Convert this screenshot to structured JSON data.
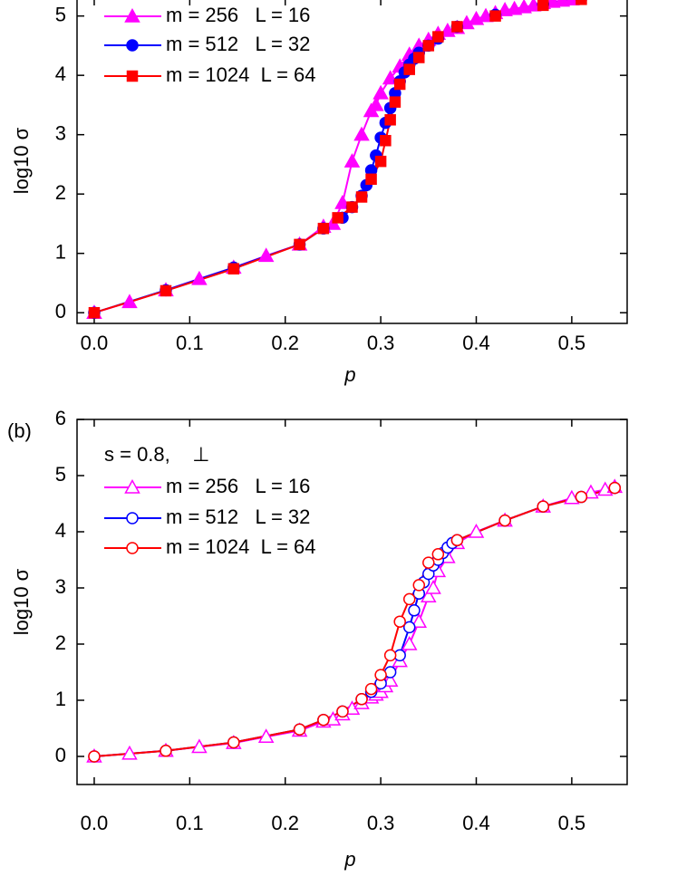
{
  "chart_data": [
    {
      "type": "line",
      "x_label": "p",
      "y_label": "log10 σ",
      "xlim": [
        -0.018,
        0.558
      ],
      "ylim": [
        -0.18,
        5.3
      ],
      "xticks": [
        {
          "value": 0,
          "label": "0.0"
        },
        0.1,
        0.2,
        0.3,
        0.4,
        0.5
      ],
      "yticks": [
        0,
        1,
        2,
        3,
        4,
        5
      ],
      "series": [
        {
          "name": "m = 256   L = 16",
          "color": "#ff00ff",
          "marker": "triangle",
          "filled": true,
          "x": [
            0,
            0.037,
            0.075,
            0.11,
            0.146,
            0.18,
            0.215,
            0.24,
            0.25,
            0.26,
            0.27,
            0.28,
            0.29,
            0.295,
            0.3,
            0.31,
            0.32,
            0.33,
            0.34,
            0.35,
            0.36,
            0.37,
            0.38,
            0.39,
            0.4,
            0.41,
            0.42,
            0.43,
            0.44,
            0.45,
            0.46,
            0.47,
            0.48,
            0.49,
            0.5
          ],
          "values": [
            0,
            0.18,
            0.38,
            0.57,
            0.76,
            0.96,
            1.15,
            1.45,
            1.5,
            1.85,
            2.55,
            3.0,
            3.4,
            3.5,
            3.7,
            3.95,
            4.15,
            4.35,
            4.5,
            4.6,
            4.7,
            4.75,
            4.8,
            4.88,
            4.95,
            5.0,
            5.05,
            5.1,
            5.12,
            5.15,
            5.18,
            5.22,
            5.24,
            5.26,
            5.28
          ]
        },
        {
          "name": "m = 512   L = 32",
          "color": "#0000ff",
          "marker": "circle",
          "filled": true,
          "x": [
            0,
            0.075,
            0.146,
            0.215,
            0.24,
            0.26,
            0.27,
            0.28,
            0.285,
            0.29,
            0.295,
            0.3,
            0.305,
            0.31,
            0.315,
            0.32,
            0.325,
            0.33,
            0.335,
            0.34,
            0.35,
            0.36,
            0.38,
            0.42,
            0.47,
            0.51
          ],
          "values": [
            0,
            0.38,
            0.76,
            1.15,
            1.42,
            1.6,
            1.78,
            1.97,
            2.15,
            2.4,
            2.65,
            2.95,
            3.2,
            3.45,
            3.7,
            3.9,
            4.05,
            4.18,
            4.28,
            4.38,
            4.5,
            4.62,
            4.82,
            5.02,
            5.2,
            5.3
          ]
        },
        {
          "name": "m = 1024  L = 64",
          "color": "#ff0000",
          "marker": "square",
          "filled": true,
          "x": [
            0,
            0.075,
            0.146,
            0.215,
            0.24,
            0.255,
            0.27,
            0.28,
            0.29,
            0.3,
            0.305,
            0.31,
            0.315,
            0.32,
            0.33,
            0.34,
            0.35,
            0.36,
            0.38,
            0.42,
            0.47,
            0.51
          ],
          "values": [
            0,
            0.37,
            0.74,
            1.15,
            1.42,
            1.6,
            1.78,
            1.95,
            2.25,
            2.55,
            2.9,
            3.25,
            3.55,
            3.85,
            4.1,
            4.3,
            4.5,
            4.65,
            4.82,
            5.0,
            5.18,
            5.28
          ]
        }
      ]
    },
    {
      "type": "line",
      "panel_label": "(b)",
      "annotation": "s = 0.8,    ⊥",
      "x_label": "p",
      "y_label": "log10 σ",
      "xlim": [
        -0.018,
        0.558
      ],
      "ylim": [
        -0.5,
        6
      ],
      "xticks": [
        {
          "value": 0,
          "label": "0.0"
        },
        0.1,
        0.2,
        0.3,
        0.4,
        0.5
      ],
      "yticks": [
        0,
        1,
        2,
        3,
        4,
        5,
        6
      ],
      "series": [
        {
          "name": "m = 256   L = 16",
          "color": "#ff00ff",
          "marker": "triangle",
          "filled": false,
          "x": [
            0,
            0.037,
            0.075,
            0.11,
            0.146,
            0.18,
            0.215,
            0.24,
            0.25,
            0.26,
            0.27,
            0.28,
            0.29,
            0.295,
            0.3,
            0.305,
            0.31,
            0.32,
            0.33,
            0.34,
            0.35,
            0.355,
            0.36,
            0.37,
            0.38,
            0.4,
            0.43,
            0.47,
            0.5,
            0.52,
            0.535,
            0.545
          ],
          "values": [
            0,
            0.05,
            0.1,
            0.17,
            0.24,
            0.35,
            0.46,
            0.62,
            0.66,
            0.75,
            0.85,
            0.95,
            1.05,
            1.1,
            1.15,
            1.25,
            1.35,
            1.7,
            2.0,
            2.4,
            2.85,
            3.0,
            3.3,
            3.55,
            3.8,
            4.0,
            4.2,
            4.45,
            4.6,
            4.7,
            4.75,
            4.8
          ]
        },
        {
          "name": "m = 512   L = 32",
          "color": "#0000ff",
          "marker": "circle",
          "filled": false,
          "x": [
            0,
            0.075,
            0.146,
            0.215,
            0.24,
            0.26,
            0.28,
            0.29,
            0.3,
            0.31,
            0.32,
            0.33,
            0.335,
            0.34,
            0.345,
            0.35,
            0.355,
            0.36,
            0.365,
            0.37,
            0.375,
            0.38,
            0.43,
            0.47,
            0.51,
            0.545
          ],
          "values": [
            0,
            0.1,
            0.25,
            0.48,
            0.65,
            0.8,
            1.02,
            1.15,
            1.3,
            1.5,
            1.8,
            2.3,
            2.6,
            2.9,
            3.1,
            3.25,
            3.4,
            3.5,
            3.62,
            3.72,
            3.8,
            3.85,
            4.2,
            4.45,
            4.62,
            4.78
          ]
        },
        {
          "name": "m = 1024  L = 64",
          "color": "#ff0000",
          "marker": "circle",
          "filled": false,
          "x": [
            0,
            0.075,
            0.146,
            0.215,
            0.24,
            0.26,
            0.28,
            0.29,
            0.3,
            0.31,
            0.32,
            0.33,
            0.34,
            0.35,
            0.36,
            0.38,
            0.43,
            0.47,
            0.51,
            0.545
          ],
          "values": [
            0,
            0.1,
            0.25,
            0.48,
            0.65,
            0.8,
            1.02,
            1.2,
            1.45,
            1.8,
            2.4,
            2.8,
            3.05,
            3.45,
            3.6,
            3.85,
            4.2,
            4.45,
            4.62,
            4.78
          ]
        }
      ]
    }
  ]
}
